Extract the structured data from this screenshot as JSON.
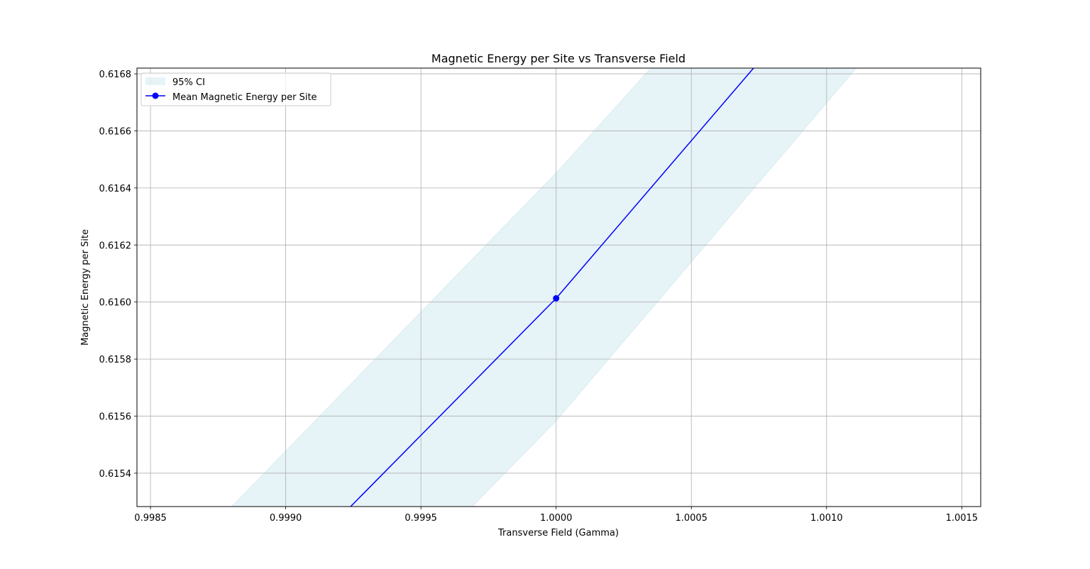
{
  "chart_data": {
    "type": "line",
    "title": "Magnetic Energy per Site vs Transverse Field",
    "xlabel": "Transverse Field (Gamma)",
    "ylabel": "Magnetic Energy per Site",
    "xlim": [
      0.99845,
      1.00157
    ],
    "ylim": [
      0.615283,
      0.61682
    ],
    "x_ticks": [
      0.9985,
      0.999,
      0.9995,
      1.0,
      1.0005,
      1.001,
      1.0015
    ],
    "x_tick_labels": [
      "0.9985",
      "0.9990",
      "0.9995",
      "1.0000",
      "1.0005",
      "1.0010",
      "1.0015"
    ],
    "y_ticks": [
      0.6154,
      0.6156,
      0.6158,
      0.616,
      0.6162,
      0.6164,
      0.6166,
      0.6168
    ],
    "y_tick_labels": [
      "0.6154",
      "0.6156",
      "0.6158",
      "0.6160",
      "0.6162",
      "0.6164",
      "0.6166",
      "0.6168"
    ],
    "grid": true,
    "legend_position": "top-left",
    "series": [
      {
        "name": "Mean Magnetic Energy per Site",
        "color": "#0000ff",
        "marker": "circle",
        "points": [
          {
            "x": 0.99924,
            "y": 0.615283
          },
          {
            "x": 1.0,
            "y": 0.616013
          },
          {
            "x": 1.00073,
            "y": 0.61682
          }
        ]
      }
    ],
    "band": {
      "name": "95% CI",
      "color": "#add8e6",
      "opacity": 0.3,
      "lower": [
        {
          "x": 0.99969,
          "y": 0.615283
        },
        {
          "x": 1.0,
          "y": 0.615583
        },
        {
          "x": 1.00111,
          "y": 0.61682
        }
      ],
      "upper": [
        {
          "x": 0.9988,
          "y": 0.615283
        },
        {
          "x": 1.0,
          "y": 0.616453
        },
        {
          "x": 1.00035,
          "y": 0.61682
        }
      ]
    },
    "data_markers": [
      {
        "x": 1.0,
        "y": 0.616013
      }
    ]
  }
}
